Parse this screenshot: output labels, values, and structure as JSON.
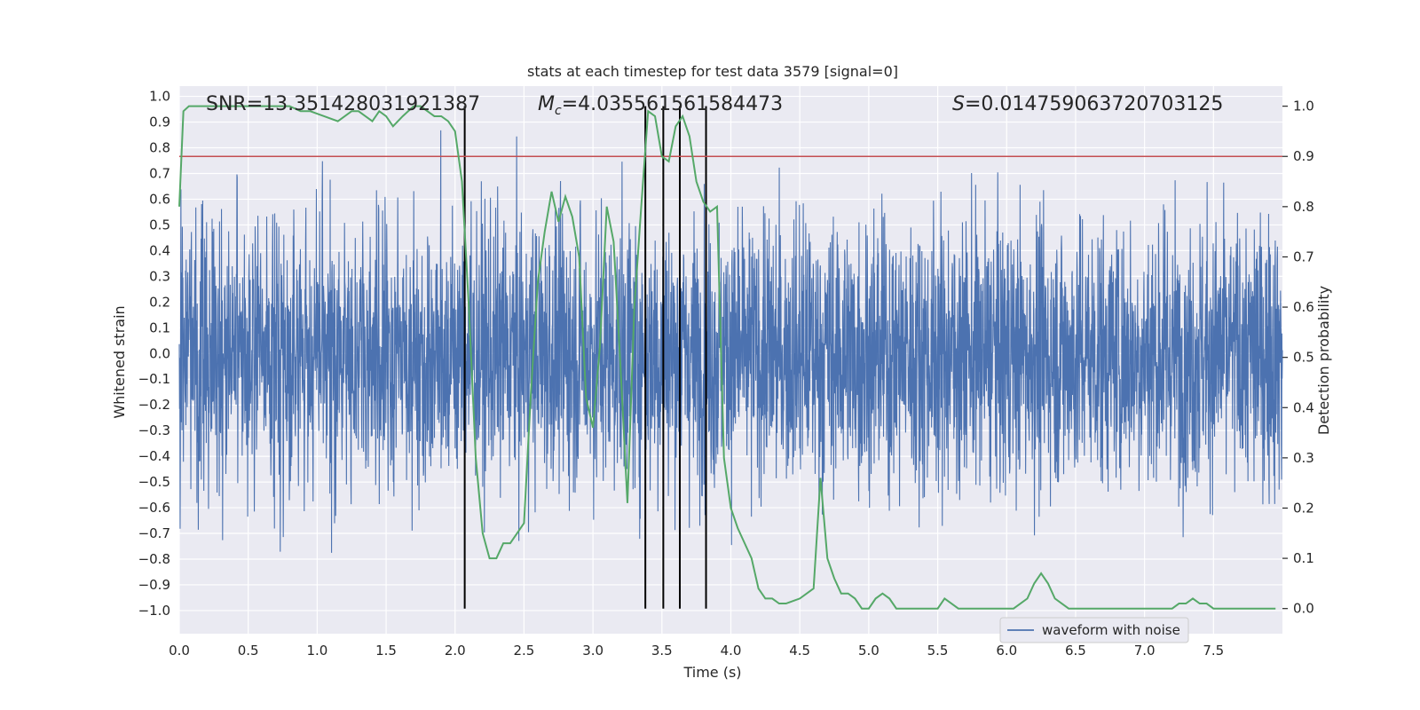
{
  "chart_data": {
    "type": "line",
    "title": "stats at each timestep for test data 3579 [signal=0]",
    "xlabel": "Time (s)",
    "ylabel_left": "Whitened strain",
    "ylabel_right": "Detection probability",
    "xlim": [
      0.0,
      8.0
    ],
    "ylim_left": [
      -1.09,
      1.04
    ],
    "ylim_right": [
      -0.05,
      1.04
    ],
    "xticks": [
      "0.0",
      "0.5",
      "1.0",
      "1.5",
      "2.0",
      "2.5",
      "3.0",
      "3.5",
      "4.0",
      "4.5",
      "5.0",
      "5.5",
      "6.0",
      "6.5",
      "7.0",
      "7.5"
    ],
    "xtick_values": [
      0.0,
      0.5,
      1.0,
      1.5,
      2.0,
      2.5,
      3.0,
      3.5,
      4.0,
      4.5,
      5.0,
      5.5,
      6.0,
      6.5,
      7.0,
      7.5
    ],
    "yticks_left": [
      "1.0",
      "0.9",
      "0.8",
      "0.7",
      "0.6",
      "0.5",
      "0.4",
      "0.3",
      "0.2",
      "0.1",
      "0.0",
      "−0.1",
      "−0.2",
      "−0.3",
      "−0.4",
      "−0.5",
      "−0.6",
      "−0.7",
      "−0.8",
      "−0.9",
      "−1.0"
    ],
    "ytick_values_left": [
      1.0,
      0.9,
      0.8,
      0.7,
      0.6,
      0.5,
      0.4,
      0.3,
      0.2,
      0.1,
      0.0,
      -0.1,
      -0.2,
      -0.3,
      -0.4,
      -0.5,
      -0.6,
      -0.7,
      -0.8,
      -0.9,
      -1.0
    ],
    "yticks_right": [
      "1.0",
      "0.9",
      "0.8",
      "0.7",
      "0.6",
      "0.5",
      "0.4",
      "0.3",
      "0.2",
      "0.1",
      "0.0"
    ],
    "ytick_values_right": [
      1.0,
      0.9,
      0.8,
      0.7,
      0.6,
      0.5,
      0.4,
      0.3,
      0.2,
      0.1,
      0.0
    ],
    "annotations": {
      "snr": "SNR=13.351428031921387",
      "mc_symbol": "M",
      "mc_sub": "c",
      "mc_value": "=4.035561561584473",
      "s_symbol": "S",
      "s_value": "=0.014759063720703125"
    },
    "threshold_right": 0.9,
    "vertical_markers": [
      2.07,
      3.38,
      3.51,
      3.63,
      3.82
    ],
    "series": [
      {
        "name": "waveform with noise",
        "axis": "left",
        "color": "#4c72b0",
        "style": "whitened noise, typical amplitude ±0.35, peaks to about ±0.95",
        "amplitude": 0.35
      },
      {
        "name": "detection probability",
        "axis": "right",
        "color": "#55a868",
        "x": [
          0.0,
          0.03,
          0.07,
          0.13,
          0.2,
          0.3,
          0.4,
          0.5,
          0.6,
          0.7,
          0.8,
          0.88,
          0.95,
          1.05,
          1.15,
          1.25,
          1.3,
          1.35,
          1.4,
          1.45,
          1.5,
          1.55,
          1.62,
          1.7,
          1.75,
          1.8,
          1.85,
          1.9,
          1.95,
          2.0,
          2.05,
          2.1,
          2.15,
          2.2,
          2.25,
          2.3,
          2.35,
          2.4,
          2.45,
          2.5,
          2.55,
          2.6,
          2.65,
          2.7,
          2.75,
          2.8,
          2.85,
          2.9,
          2.95,
          3.0,
          3.05,
          3.1,
          3.15,
          3.2,
          3.25,
          3.3,
          3.35,
          3.4,
          3.45,
          3.5,
          3.55,
          3.6,
          3.65,
          3.7,
          3.75,
          3.8,
          3.85,
          3.9,
          3.95,
          4.0,
          4.05,
          4.1,
          4.15,
          4.2,
          4.25,
          4.3,
          4.35,
          4.4,
          4.5,
          4.6,
          4.65,
          4.7,
          4.75,
          4.8,
          4.85,
          4.9,
          4.95,
          5.0,
          5.05,
          5.1,
          5.15,
          5.2,
          5.3,
          5.4,
          5.5,
          5.55,
          5.6,
          5.65,
          5.7,
          5.8,
          5.9,
          6.0,
          6.05,
          6.1,
          6.15,
          6.2,
          6.25,
          6.3,
          6.35,
          6.4,
          6.45,
          6.5,
          6.6,
          6.7,
          6.8,
          6.9,
          7.0,
          7.1,
          7.2,
          7.25,
          7.3,
          7.35,
          7.4,
          7.45,
          7.5,
          7.55,
          7.6,
          7.7,
          7.8,
          7.95
        ],
        "y": [
          0.8,
          0.99,
          1.0,
          1.0,
          1.0,
          1.0,
          1.0,
          1.0,
          1.0,
          1.0,
          1.0,
          0.99,
          0.99,
          0.98,
          0.97,
          0.99,
          0.99,
          0.98,
          0.97,
          0.99,
          0.98,
          0.96,
          0.98,
          1.0,
          1.0,
          0.99,
          0.98,
          0.98,
          0.97,
          0.95,
          0.85,
          0.6,
          0.3,
          0.15,
          0.1,
          0.1,
          0.13,
          0.13,
          0.15,
          0.17,
          0.43,
          0.65,
          0.75,
          0.83,
          0.77,
          0.82,
          0.78,
          0.7,
          0.42,
          0.36,
          0.52,
          0.8,
          0.73,
          0.48,
          0.21,
          0.6,
          0.8,
          0.99,
          0.98,
          0.9,
          0.89,
          0.96,
          0.98,
          0.94,
          0.85,
          0.81,
          0.79,
          0.8,
          0.3,
          0.2,
          0.16,
          0.13,
          0.1,
          0.04,
          0.02,
          0.02,
          0.01,
          0.01,
          0.02,
          0.04,
          0.26,
          0.1,
          0.06,
          0.03,
          0.03,
          0.02,
          0.0,
          0.0,
          0.02,
          0.03,
          0.02,
          0.0,
          0.0,
          0.0,
          0.0,
          0.02,
          0.01,
          0.0,
          0.0,
          0.0,
          0.0,
          0.0,
          0.0,
          0.01,
          0.02,
          0.05,
          0.07,
          0.05,
          0.02,
          0.01,
          0.0,
          0.0,
          0.0,
          0.0,
          0.0,
          0.0,
          0.0,
          0.0,
          0.0,
          0.01,
          0.01,
          0.02,
          0.01,
          0.01,
          0.0,
          0.0,
          0.0,
          0.0,
          0.0,
          0.0
        ]
      }
    ],
    "legend": {
      "entries": [
        "waveform with noise"
      ],
      "placement": "lower-right"
    }
  }
}
